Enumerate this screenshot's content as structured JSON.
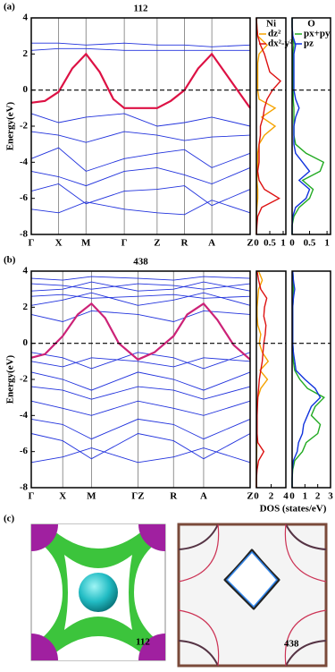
{
  "chart_data": [
    {
      "type": "band",
      "label": "(a)",
      "title": "112",
      "ylabel": "Energy(eV)",
      "xlim": [
        0,
        8
      ],
      "ylim": [
        -8,
        4
      ],
      "xticks": [
        {
          "value": 0,
          "label": "Γ"
        },
        {
          "value": 1,
          "label": "X"
        },
        {
          "value": 2,
          "label": "M"
        },
        {
          "value": 3.4,
          "label": "Γ"
        },
        {
          "value": 4.6,
          "label": "Z"
        },
        {
          "value": 5.6,
          "label": "R"
        },
        {
          "value": 6.6,
          "label": "A"
        },
        {
          "value": 8,
          "label": "Z"
        }
      ],
      "yticks": [
        -8,
        -6,
        -4,
        -2,
        0,
        2,
        4
      ],
      "x": [
        0,
        1,
        2,
        3.4,
        4.6,
        5.6,
        6.6,
        8
      ],
      "series": [
        {
          "color": "#2233dd",
          "values": [
            2.6,
            2.6,
            2.5,
            2.6,
            2.5,
            2.5,
            2.4,
            2.5
          ]
        },
        {
          "color": "#2233dd",
          "values": [
            2.2,
            2.3,
            2.3,
            2.2,
            2.2,
            2.2,
            2.2,
            2.2
          ]
        },
        {
          "color": "#2233dd",
          "values": [
            -1.3,
            -1.8,
            -1.5,
            -1.3,
            -2.0,
            -1.8,
            -1.5,
            -2.0
          ]
        },
        {
          "color": "#2233dd",
          "values": [
            -2.3,
            -2.5,
            -2.9,
            -2.3,
            -2.5,
            -2.8,
            -2.6,
            -2.5
          ]
        },
        {
          "color": "#2233dd",
          "values": [
            -3.8,
            -3.2,
            -4.5,
            -3.8,
            -3.5,
            -3.3,
            -4.3,
            -3.5
          ]
        },
        {
          "color": "#2233dd",
          "values": [
            -4.5,
            -4.8,
            -5.3,
            -4.5,
            -4.3,
            -4.7,
            -5.2,
            -4.3
          ]
        },
        {
          "color": "#2233dd",
          "values": [
            -5.6,
            -5.2,
            -6.3,
            -5.6,
            -5.5,
            -5.3,
            -6.4,
            -5.5
          ]
        },
        {
          "color": "#2233dd",
          "values": [
            -6.6,
            -6.8,
            -6.2,
            -6.6,
            -6.8,
            -6.9,
            -6.1,
            -6.8
          ]
        },
        {
          "color": "#dd1144",
          "x": [
            0,
            0.5,
            1,
            1.5,
            2,
            2.5,
            3,
            3.4,
            4,
            4.6,
            5.1,
            5.6,
            6.1,
            6.6,
            7.3,
            8
          ],
          "values": [
            -0.7,
            -0.6,
            -0.1,
            1.2,
            2,
            1.0,
            -0.5,
            -1,
            -1,
            -1,
            -0.6,
            0,
            1.2,
            2,
            0.5,
            -1
          ]
        }
      ]
    },
    {
      "type": "dos",
      "title": "Ni",
      "legend": "upper right",
      "xlim": [
        0,
        1.1
      ],
      "ylim": [
        -8,
        4
      ],
      "xticks": [
        0,
        0.5,
        1
      ],
      "energy": [
        -8,
        -7.5,
        -7,
        -6.5,
        -6,
        -5.5,
        -5,
        -4.5,
        -4,
        -3.5,
        -3,
        -2.5,
        -2,
        -1.5,
        -1,
        -0.5,
        0,
        0.5,
        1,
        1.5,
        2,
        2.5,
        3,
        3.5,
        4
      ],
      "series": [
        {
          "name": "dz²",
          "color": "#f5a300",
          "values": [
            0,
            0,
            0,
            0.02,
            0.05,
            0.05,
            0.02,
            0.03,
            0.05,
            0.05,
            0.1,
            0.3,
            0.7,
            0.2,
            0.7,
            0.1,
            0.05,
            0.05,
            0.05,
            0.05,
            0.1,
            0.4,
            0.05,
            0.02,
            0
          ]
        },
        {
          "name": "dx²-y²",
          "color": "#dd1111",
          "values": [
            0,
            0.02,
            0.05,
            0.2,
            0.85,
            0.3,
            0.1,
            0.05,
            0.1,
            0.1,
            0.1,
            0.15,
            0.15,
            0.25,
            0.3,
            0.4,
            0.6,
            0.9,
            0.5,
            0.4,
            0.3,
            0.15,
            0.05,
            0.02,
            0
          ]
        }
      ]
    },
    {
      "type": "dos",
      "title": "O",
      "legend": "upper right",
      "xlim": [
        0,
        1.1
      ],
      "ylim": [
        -8,
        4
      ],
      "xticks": [
        0,
        0.5,
        1
      ],
      "energy": [
        -8,
        -7.5,
        -7,
        -6.5,
        -6,
        -5.5,
        -5,
        -4.5,
        -4,
        -3.5,
        -3,
        -2.5,
        -2,
        -1.5,
        -1,
        -0.5,
        0,
        0.5,
        1,
        1.5,
        2,
        2.5,
        3,
        3.5,
        4
      ],
      "series": [
        {
          "name": "px+py",
          "color": "#22aa22",
          "values": [
            0,
            0,
            0.05,
            0.2,
            0.5,
            0.6,
            0.3,
            0.8,
            0.9,
            0.4,
            0.1,
            0.05,
            0.05,
            0.05,
            0.05,
            0.03,
            0.03,
            0.03,
            0.02,
            0.02,
            0.02,
            0.05,
            0.02,
            0,
            0
          ]
        },
        {
          "name": "pz",
          "color": "#1133dd",
          "values": [
            0,
            0,
            0.02,
            0.1,
            0.4,
            0.5,
            0.2,
            0.5,
            0.3,
            0.1,
            0.05,
            0.05,
            0.05,
            0.1,
            0.2,
            0.1,
            0.05,
            0.05,
            0.05,
            0.05,
            0.05,
            0.1,
            0.02,
            0,
            0
          ]
        }
      ]
    },
    {
      "type": "band",
      "label": "(b)",
      "title": "438",
      "ylabel": "Energy(eV)",
      "xlim": [
        0,
        8
      ],
      "ylim": [
        -8,
        4
      ],
      "xticks": [
        {
          "value": 0,
          "label": "Γ"
        },
        {
          "value": 1.15,
          "label": "X"
        },
        {
          "value": 2.2,
          "label": "M"
        },
        {
          "value": 3.9,
          "label": "ΓZ"
        },
        {
          "value": 5.2,
          "label": "R"
        },
        {
          "value": 6.3,
          "label": "A"
        },
        {
          "value": 8,
          "label": "Z"
        }
      ],
      "yticks": [
        -8,
        -6,
        -4,
        -2,
        0,
        2,
        4
      ],
      "x": [
        0,
        1.15,
        2.2,
        3.9,
        5.2,
        6.3,
        8
      ],
      "series": [
        {
          "color": "#2233dd",
          "values": [
            3.6,
            3.5,
            3.7,
            3.6,
            3.5,
            3.7,
            3.6
          ]
        },
        {
          "color": "#2233dd",
          "values": [
            3.3,
            3.2,
            3.0,
            3.3,
            3.2,
            3.0,
            3.3
          ]
        },
        {
          "color": "#2233dd",
          "values": [
            2.9,
            3.0,
            3.4,
            2.9,
            3.0,
            3.4,
            2.9
          ]
        },
        {
          "color": "#2233dd",
          "values": [
            2.6,
            2.7,
            2.5,
            2.6,
            2.7,
            2.5,
            2.6
          ]
        },
        {
          "color": "#2233dd",
          "values": [
            2.1,
            2.4,
            2.8,
            2.1,
            2.4,
            2.8,
            2.1
          ]
        },
        {
          "color": "#2233dd",
          "values": [
            1.6,
            1.2,
            1.8,
            1.6,
            1.2,
            1.8,
            1.6
          ]
        },
        {
          "color": "#2233dd",
          "values": [
            -0.5,
            -0.8,
            -1.4,
            -0.5,
            -0.8,
            -1.4,
            -0.5
          ]
        },
        {
          "color": "#2233dd",
          "values": [
            -1.0,
            -1.3,
            -0.8,
            -1.0,
            -1.3,
            -0.8,
            -1.0
          ]
        },
        {
          "color": "#2233dd",
          "values": [
            -1.6,
            -2.0,
            -2.6,
            -1.6,
            -2.0,
            -2.6,
            -1.6
          ]
        },
        {
          "color": "#2233dd",
          "values": [
            -2.4,
            -2.6,
            -3.1,
            -2.4,
            -2.6,
            -3.1,
            -2.4
          ]
        },
        {
          "color": "#2233dd",
          "values": [
            -3.2,
            -3.6,
            -4.0,
            -3.2,
            -3.6,
            -4.0,
            -3.2
          ]
        },
        {
          "color": "#2233dd",
          "values": [
            -4.2,
            -4.5,
            -5.3,
            -4.2,
            -4.5,
            -5.3,
            -4.2
          ]
        },
        {
          "color": "#2233dd",
          "values": [
            -5.0,
            -5.4,
            -6.4,
            -5.0,
            -5.4,
            -6.4,
            -5.0
          ]
        },
        {
          "color": "#2233dd",
          "values": [
            -6.6,
            -6.3,
            -5.8,
            -6.6,
            -6.3,
            -5.8,
            -6.6
          ]
        },
        {
          "color": "#cc2277",
          "x": [
            0,
            0.5,
            1.15,
            1.7,
            2.2,
            2.7,
            3.2,
            3.9,
            4.5,
            5.2,
            5.7,
            6.3,
            6.8,
            7.4,
            8
          ],
          "values": [
            -0.8,
            -0.6,
            0.4,
            1.6,
            2.2,
            1.4,
            0,
            -0.9,
            -0.5,
            0.4,
            1.6,
            2.2,
            1.3,
            -0.1,
            -0.9
          ]
        }
      ]
    },
    {
      "type": "dos",
      "xlim": [
        0,
        4
      ],
      "ylim": [
        -8,
        4
      ],
      "xticks": [
        0,
        2,
        4
      ],
      "energy": [
        -8,
        -7.5,
        -7,
        -6.5,
        -6,
        -5.5,
        -5,
        -4.5,
        -4,
        -3.5,
        -3,
        -2.5,
        -2,
        -1.5,
        -1,
        -0.5,
        0,
        0.5,
        1,
        1.5,
        2,
        2.5,
        3,
        3.5,
        4
      ],
      "series": [
        {
          "color": "#f5a300",
          "values": [
            0,
            0,
            0,
            0,
            0.05,
            0.05,
            0.05,
            0.05,
            0.05,
            0.1,
            0.2,
            0.6,
            1.5,
            0.5,
            1.6,
            0.8,
            0.4,
            0.6,
            0.2,
            0.1,
            0.1,
            0.2,
            0.3,
            0.8,
            0.3
          ]
        },
        {
          "color": "#dd1111",
          "values": [
            0,
            0,
            0.1,
            0.3,
            1.0,
            0.2,
            0.1,
            0.1,
            0.1,
            0.15,
            0.2,
            0.3,
            0.4,
            0.6,
            0.8,
            0.9,
            1.0,
            1.2,
            1.3,
            1.0,
            1.1,
            1.4,
            0.6,
            0.3,
            0.1
          ]
        }
      ]
    },
    {
      "type": "dos",
      "xlabel": "DOS (states/eV)",
      "xlim": [
        0,
        3
      ],
      "ylim": [
        -8,
        4
      ],
      "xticks": [
        0,
        1,
        2,
        3
      ],
      "energy": [
        -8,
        -7.5,
        -7,
        -6.5,
        -6,
        -5.5,
        -5,
        -4.5,
        -4,
        -3.5,
        -3,
        -2.5,
        -2,
        -1.5,
        -1,
        -0.5,
        0,
        0.5,
        1,
        1.5,
        2,
        2.5,
        3,
        3.5,
        4
      ],
      "series": [
        {
          "color": "#22aa22",
          "values": [
            0,
            0,
            0.05,
            0.2,
            0.8,
            1.1,
            2.0,
            2.2,
            1.5,
            1.8,
            2.5,
            1.2,
            0.6,
            0.2,
            0.1,
            0.1,
            0.05,
            0.05,
            0.05,
            0.05,
            0.05,
            0.1,
            0.1,
            0.1,
            0.05
          ]
        },
        {
          "color": "#1133dd",
          "values": [
            0,
            0,
            0.02,
            0.1,
            0.4,
            0.5,
            0.8,
            0.9,
            1.2,
            1.5,
            2.2,
            1.8,
            1.0,
            0.3,
            0.2,
            0.1,
            0.05,
            0.05,
            0.05,
            0.05,
            0.05,
            0.1,
            0.2,
            0.1,
            0.05
          ]
        }
      ]
    }
  ],
  "panel_c": {
    "label": "(c)",
    "left_label": "112",
    "right_label": "438"
  }
}
